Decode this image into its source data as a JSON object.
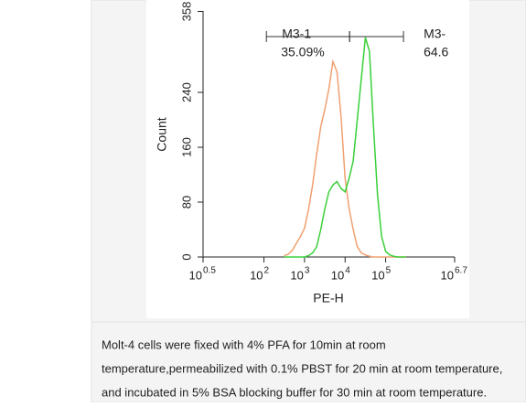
{
  "chart_data": {
    "type": "line",
    "xscale": "log",
    "x_label": "PE-H",
    "y_label": "Count",
    "xlim": [
      3.162,
      5011872
    ],
    "xticks": [
      {
        "value": 3.162,
        "label": "10",
        "exponent": "0.5"
      },
      {
        "value": 100,
        "label": "10",
        "exponent": "2"
      },
      {
        "value": 1000,
        "label": "10",
        "exponent": "3"
      },
      {
        "value": 10000,
        "label": "10",
        "exponent": "4"
      },
      {
        "value": 100000,
        "label": "10",
        "exponent": "5"
      },
      {
        "value": 5011872,
        "label": "10",
        "exponent": "6.7"
      }
    ],
    "ylim": [
      0,
      358
    ],
    "yticks": [
      0,
      80,
      160,
      240,
      358
    ],
    "x": [
      316,
      398,
      501,
      631,
      794,
      1000,
      1259,
      1585,
      1995,
      2512,
      3162,
      3981,
      5012,
      6310,
      7943,
      10000,
      12589,
      15849,
      19953,
      25119,
      31623,
      39811,
      50119,
      63096,
      79433,
      100000,
      125893,
      158489,
      199526,
      251189,
      316228
    ],
    "series": [
      {
        "color": "#f0a070",
        "values": [
          2,
          4,
          10,
          20,
          30,
          42,
          70,
          105,
          150,
          190,
          215,
          245,
          285,
          270,
          205,
          115,
          70,
          40,
          15,
          6,
          3,
          1,
          0,
          0,
          0,
          0,
          0,
          0,
          0,
          0,
          0
        ]
      },
      {
        "color": "#3ad03a",
        "values": [
          0,
          0,
          0,
          0,
          0,
          0,
          2,
          6,
          15,
          40,
          70,
          95,
          105,
          110,
          100,
          95,
          115,
          140,
          200,
          260,
          320,
          300,
          190,
          90,
          30,
          8,
          3,
          1,
          0,
          0,
          0
        ]
      }
    ],
    "gates": [
      {
        "label": "M3-1",
        "value_label": "35.09%",
        "range": [
          115,
          12900
        ]
      },
      {
        "label": "M3-",
        "value_label": "64.6",
        "range": [
          12900,
          275000
        ]
      }
    ]
  },
  "caption": [
    "Molt-4 cells were fixed with 4% PFA for 10min at room",
    "temperature,permeabilized with 0.1% PBST for 20 min at room temperature,",
    "and incubated in 5% BSA blocking buffer for 30 min at room temperature."
  ]
}
